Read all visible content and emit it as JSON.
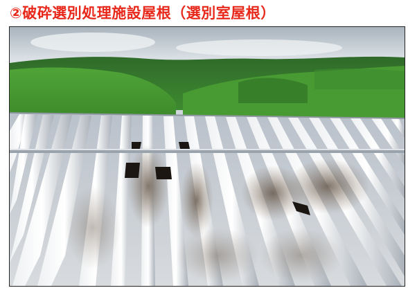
{
  "caption": "②破砕選別処理施設屋根（選別室屋根）"
}
